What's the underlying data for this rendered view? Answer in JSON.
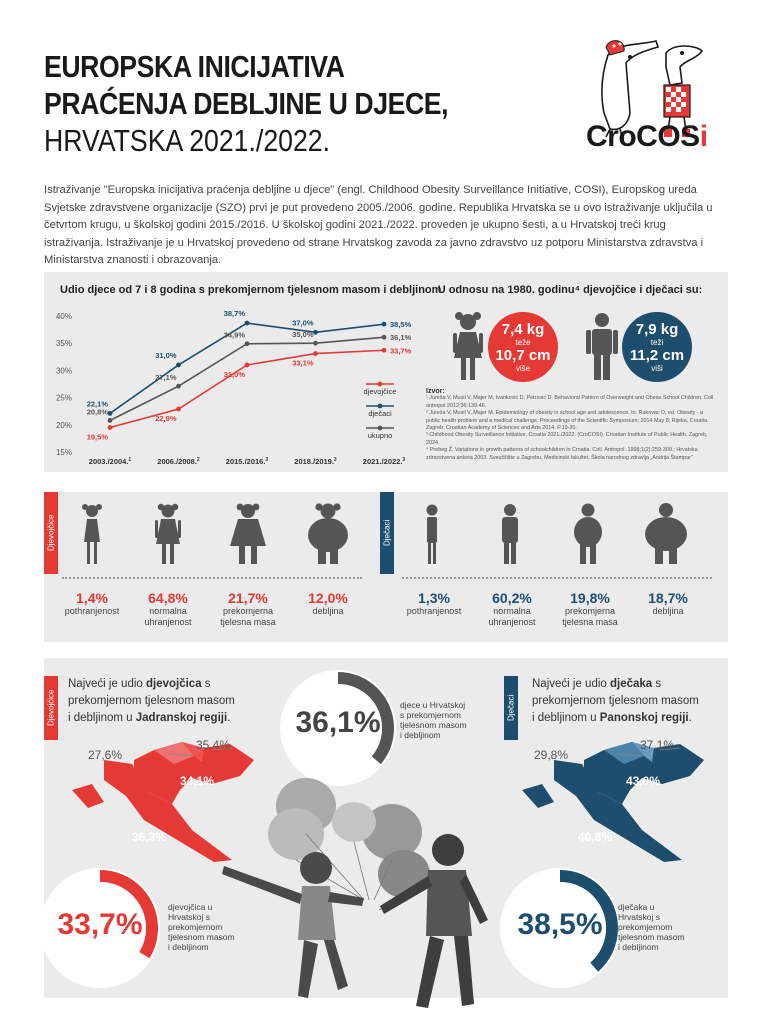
{
  "header": {
    "title_line1": "EUROPSKA INICIJATIVA",
    "title_line2": "PRAĆENJA DEBLJINE U DJECE,",
    "title_line3": "HRVATSKA 2021./2022.",
    "logo_text": "CroCOS",
    "logo_text_i": "i"
  },
  "intro": "Istraživanje \"Europska inicijativa praćenja debljine u djece\" (engl. Childhood Obesity Surveillance Initiative, COSI), Europskog ureda Svjetske zdravstvene organizacije (SZO) prvi je put provedeno 2005./2006. godine. Republika Hrvatska se u ovo istraživanje uključila u četvrtom krugu, u školskoj godini 2015./2016. U školskoj godini 2021./2022. proveden je ukupno šesti, a u Hrvatskoj treći krug istraživanja. Istraživanje je u Hrvatskoj provedeno od strane Hrvatskog zavoda za javno zdravstvo uz potporu Ministarstva zdravstva i Ministarstva znanosti i obrazovanja.",
  "chart_data": {
    "type": "line",
    "title": "Udio djece od 7 i 8 godina s prekomjernom tjelesnom masom i debljinom",
    "categories": [
      "2003./2004.",
      "2006./2008.",
      "2015./2016.",
      "2018./2019.",
      "2021./2022."
    ],
    "category_sups": [
      "1",
      "2",
      "3",
      "3",
      "3"
    ],
    "ylim": [
      15,
      40
    ],
    "yticks": [
      "15%",
      "20%",
      "25%",
      "30%",
      "35%",
      "40%"
    ],
    "series": [
      {
        "name": "djevojčice",
        "color": "#e53935",
        "values": [
          19.5,
          22.9,
          31.0,
          33.1,
          33.7
        ],
        "labels": [
          "19,5%",
          "22,9%",
          "31,0%",
          "33,1%",
          "33,7%"
        ]
      },
      {
        "name": "dječaci",
        "color": "#1d4e6e",
        "values": [
          22.1,
          31.0,
          38.7,
          37.0,
          38.5
        ],
        "labels": [
          "22,1%",
          "31,0%",
          "38,7%",
          "37,0%",
          "38,5%"
        ]
      },
      {
        "name": "ukupno",
        "color": "#555555",
        "values": [
          20.8,
          27.1,
          34.9,
          35.0,
          36.1
        ],
        "labels": [
          "20,8%",
          "27,1%",
          "34,9%",
          "35,0%",
          "36,1%"
        ]
      }
    ],
    "grid": false,
    "legend": "right"
  },
  "compare": {
    "title": "U odnosu na 1980. godinu⁴ djevojčice i dječaci su:",
    "girl": {
      "v1": "7,4 kg",
      "s1": "teže",
      "v2": "10,7 cm",
      "s2": "više"
    },
    "boy": {
      "v1": "7,9 kg",
      "s1": "teži",
      "v2": "11,2 cm",
      "s2": "viši"
    }
  },
  "sources": {
    "heading": "Izvor:",
    "items": [
      "¹ Jureša V, Musil V, Majer M, Ivanković D, Petrović D. Behavioral Pattern of Overweight and Obese School Children. Coll antropol 2012;36:139-46.",
      "² Jureša V, Musil V, Majer M. Epidemiology of obesity in school age and adolescence. In: Rakovac D, ed. Obesity - a public health problem and a medical challenge. Proceedings of the Scientific Symposium; 2014 May 8; Rijeka, Croatia. Zagreb: Croatian Academy of Sciences and Arts 2014. P.19-30.",
      "³ Childhood Obesity Surveillance Initiative, Croatia 2021./2022. (CroCOSI). Croatian Institute of Public Health, Zagreb, 2024.",
      "⁴ Prebeg Ž. Variations in growth patterns of schoolchildren in Croatia. Coll. Antropol. 1998;1(2):259-309.; Hrvatska zdravstvena anketa 2003. Sveučilište u Zagrebu, Medicinski fakultet, Škola narodnog zdravlja „Andrija Štampar\""
    ]
  },
  "bodyshape": {
    "girls_tab": "Djevojčice",
    "boys_tab": "Dječaci",
    "girls": [
      {
        "pct": "1,4%",
        "label": "pothranjenost"
      },
      {
        "pct": "64,8%",
        "label": "normalna uhranjenost"
      },
      {
        "pct": "21,7%",
        "label": "prekomjerna tjelesna masa"
      },
      {
        "pct": "12,0%",
        "label": "debljina"
      }
    ],
    "boys": [
      {
        "pct": "1,3%",
        "label": "pothranjenost"
      },
      {
        "pct": "60,2%",
        "label": "normalna uhranjenost"
      },
      {
        "pct": "19,8%",
        "label": "prekomjerna tjelesna masa"
      },
      {
        "pct": "18,7%",
        "label": "debljina"
      }
    ]
  },
  "regional": {
    "girls_tab": "Djevojčice",
    "boys_tab": "Dječaci",
    "girls_text_a": "Najveći je udio ",
    "girls_text_b": "djevojčica",
    "girls_text_c": " s prekomjernom tjelesnom masom i debljinom u ",
    "girls_text_d": "Jadranskoj regiji",
    "girls_text_e": ".",
    "boys_text_a": "Najveći je udio ",
    "boys_text_b": "dječaka",
    "boys_text_c": " s prekomjernom tjelesnom masom i debljinom u ",
    "boys_text_d": "Panonskoj regiji",
    "boys_text_e": ".",
    "total_pct": "36,1%",
    "total_desc": "djece u Hrvatskoj s prekomjernom tjelesnom masom i debljinom",
    "girls_pct": "33,7%",
    "girls_desc": "djevojčica u Hrvatskoj s prekomjernom tjelesnom masom i debljinom",
    "boys_pct": "38,5%",
    "boys_desc": "dječaka u Hrvatskoj s prekomjernom tjelesnom masom i debljinom",
    "girls_map": {
      "r1": "27,6%",
      "r2": "35,4%",
      "r3": "34,1%",
      "r4": "36,3%"
    },
    "boys_map": {
      "r1": "29,8%",
      "r2": "37,1%",
      "r3": "43,0%",
      "r4": "40,8%"
    }
  },
  "colors": {
    "girls": "#e53935",
    "boys": "#1d4e6e",
    "total": "#555555",
    "panel": "#ebebeb"
  }
}
